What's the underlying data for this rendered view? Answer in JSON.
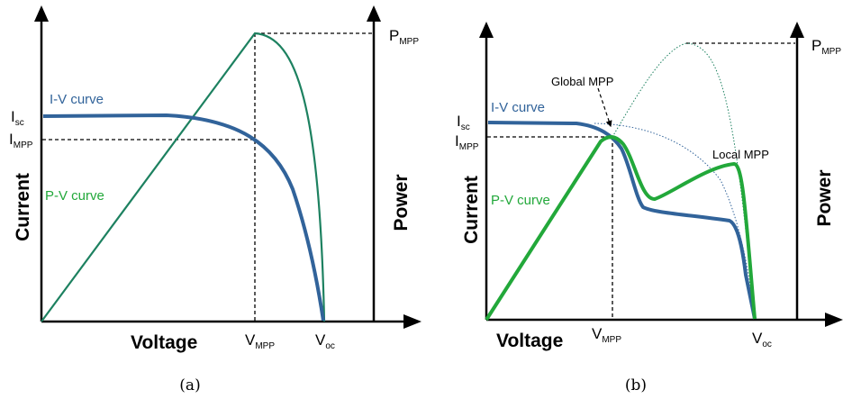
{
  "colors": {
    "iv": "#31639a",
    "pv_a": "#1d8160",
    "pv_b": "#22a83a",
    "axis": "#000000"
  },
  "panel_a": {
    "caption": "(a)",
    "y_left_label": "Current",
    "y_right_label": "Power",
    "x_label": "Voltage",
    "iv_label": "I-V curve",
    "pv_label": "P-V curve",
    "isc_main": "I",
    "isc_sub": "sc",
    "impp_main": "I",
    "impp_sub": "MPP",
    "pmpp_main": "P",
    "pmpp_sub": "MPP",
    "vmpp_main": "V",
    "vmpp_sub": "MPP",
    "voc_main": "V",
    "voc_sub": "oc"
  },
  "panel_b": {
    "caption": "(b)",
    "y_left_label": "Current",
    "y_right_label": "Power",
    "x_label": "Voltage",
    "iv_label": "I-V curve",
    "pv_label": "P-V curve",
    "global_mpp": "Global MPP",
    "local_mpp": "Local MPP",
    "isc_main": "I",
    "isc_sub": "sc",
    "impp_main": "I",
    "impp_sub": "MPP",
    "pmpp_main": "P",
    "pmpp_sub": "MPP",
    "vmpp_main": "V",
    "vmpp_sub": "MPP",
    "voc_main": "V",
    "voc_sub": "oc"
  }
}
